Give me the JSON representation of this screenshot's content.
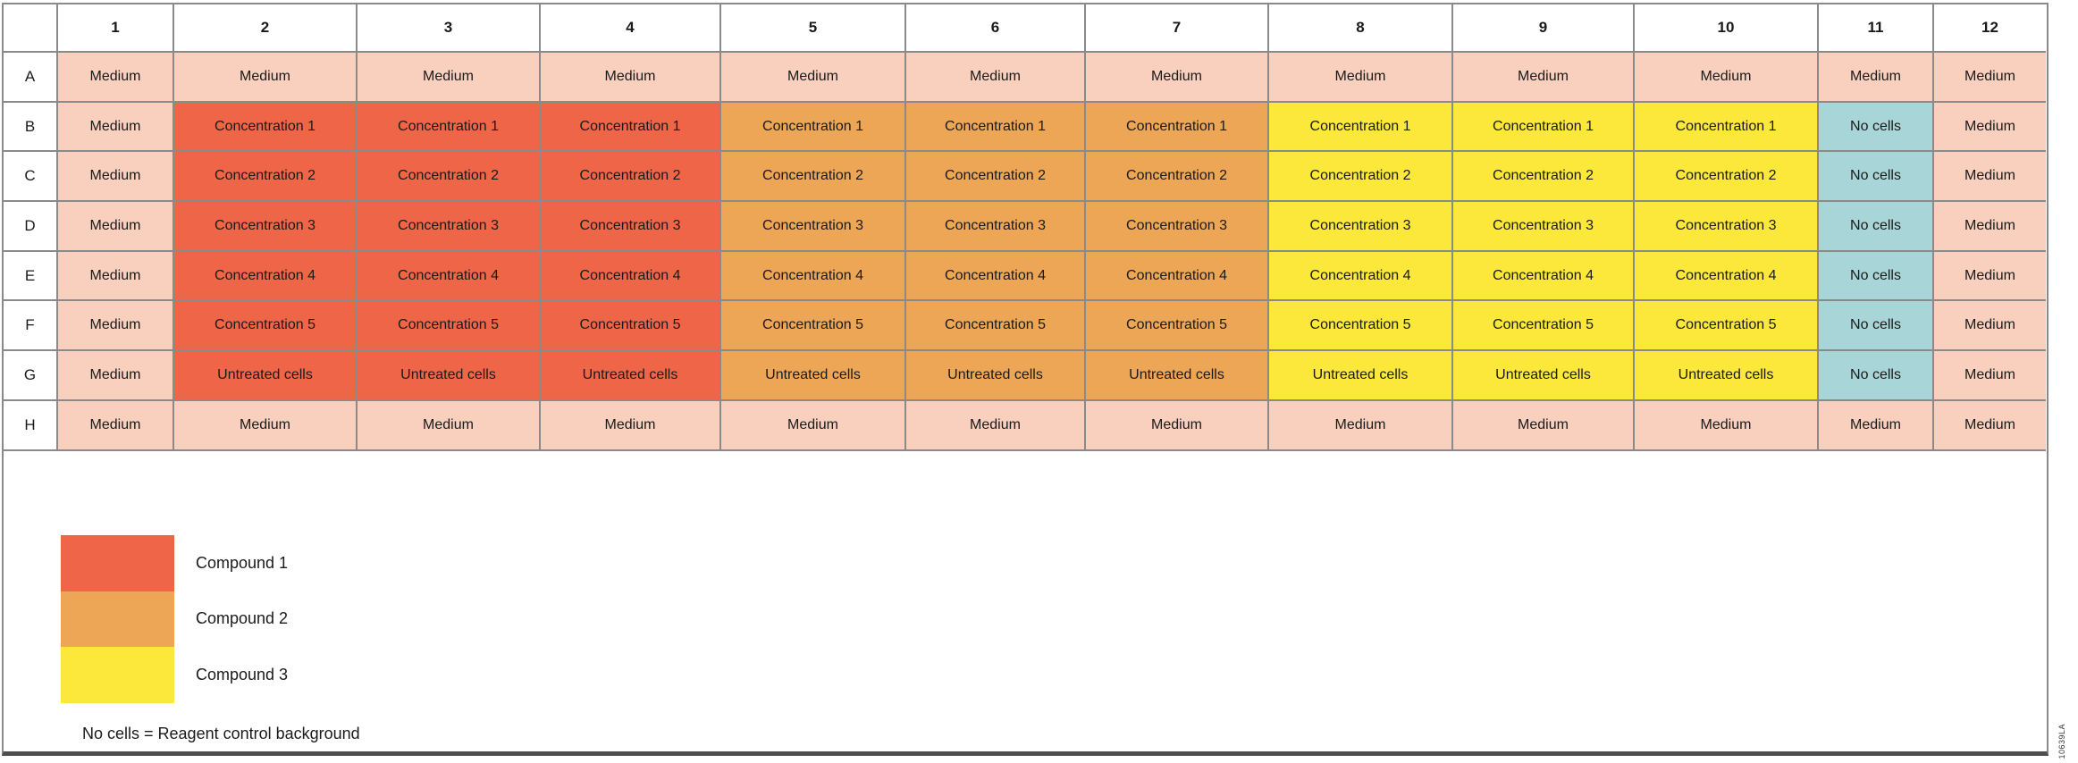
{
  "palette": {
    "medium": "#F9D0BE",
    "compound1": "#EF6548",
    "compound2": "#EDA655",
    "compound3": "#FBE83B",
    "no_cells": "#A8D5D7",
    "grid_line": "#8A8A8A",
    "bottom_edge": "#4F4F4F",
    "text": "#1A1A1A"
  },
  "plate": {
    "column_headers": [
      "1",
      "2",
      "3",
      "4",
      "5",
      "6",
      "7",
      "8",
      "9",
      "10",
      "11",
      "12"
    ],
    "rows": [
      {
        "label": "A",
        "cells": [
          {
            "text": "Medium",
            "color": "medium"
          },
          {
            "text": "Medium",
            "color": "medium"
          },
          {
            "text": "Medium",
            "color": "medium"
          },
          {
            "text": "Medium",
            "color": "medium"
          },
          {
            "text": "Medium",
            "color": "medium"
          },
          {
            "text": "Medium",
            "color": "medium"
          },
          {
            "text": "Medium",
            "color": "medium"
          },
          {
            "text": "Medium",
            "color": "medium"
          },
          {
            "text": "Medium",
            "color": "medium"
          },
          {
            "text": "Medium",
            "color": "medium"
          },
          {
            "text": "Medium",
            "color": "medium"
          },
          {
            "text": "Medium",
            "color": "medium"
          }
        ]
      },
      {
        "label": "B",
        "cells": [
          {
            "text": "Medium",
            "color": "medium"
          },
          {
            "text": "Concentration 1",
            "color": "compound1"
          },
          {
            "text": "Concentration 1",
            "color": "compound1"
          },
          {
            "text": "Concentration 1",
            "color": "compound1"
          },
          {
            "text": "Concentration 1",
            "color": "compound2"
          },
          {
            "text": "Concentration 1",
            "color": "compound2"
          },
          {
            "text": "Concentration 1",
            "color": "compound2"
          },
          {
            "text": "Concentration 1",
            "color": "compound3"
          },
          {
            "text": "Concentration 1",
            "color": "compound3"
          },
          {
            "text": "Concentration 1",
            "color": "compound3"
          },
          {
            "text": "No cells",
            "color": "no_cells"
          },
          {
            "text": "Medium",
            "color": "medium"
          }
        ]
      },
      {
        "label": "C",
        "cells": [
          {
            "text": "Medium",
            "color": "medium"
          },
          {
            "text": "Concentration 2",
            "color": "compound1"
          },
          {
            "text": "Concentration 2",
            "color": "compound1"
          },
          {
            "text": "Concentration 2",
            "color": "compound1"
          },
          {
            "text": "Concentration 2",
            "color": "compound2"
          },
          {
            "text": "Concentration 2",
            "color": "compound2"
          },
          {
            "text": "Concentration 2",
            "color": "compound2"
          },
          {
            "text": "Concentration 2",
            "color": "compound3"
          },
          {
            "text": "Concentration 2",
            "color": "compound3"
          },
          {
            "text": "Concentration 2",
            "color": "compound3"
          },
          {
            "text": "No cells",
            "color": "no_cells"
          },
          {
            "text": "Medium",
            "color": "medium"
          }
        ]
      },
      {
        "label": "D",
        "cells": [
          {
            "text": "Medium",
            "color": "medium"
          },
          {
            "text": "Concentration 3",
            "color": "compound1"
          },
          {
            "text": "Concentration 3",
            "color": "compound1"
          },
          {
            "text": "Concentration 3",
            "color": "compound1"
          },
          {
            "text": "Concentration 3",
            "color": "compound2"
          },
          {
            "text": "Concentration 3",
            "color": "compound2"
          },
          {
            "text": "Concentration 3",
            "color": "compound2"
          },
          {
            "text": "Concentration 3",
            "color": "compound3"
          },
          {
            "text": "Concentration 3",
            "color": "compound3"
          },
          {
            "text": "Concentration 3",
            "color": "compound3"
          },
          {
            "text": "No cells",
            "color": "no_cells"
          },
          {
            "text": "Medium",
            "color": "medium"
          }
        ]
      },
      {
        "label": "E",
        "cells": [
          {
            "text": "Medium",
            "color": "medium"
          },
          {
            "text": "Concentration 4",
            "color": "compound1"
          },
          {
            "text": "Concentration 4",
            "color": "compound1"
          },
          {
            "text": "Concentration 4",
            "color": "compound1"
          },
          {
            "text": "Concentration 4",
            "color": "compound2"
          },
          {
            "text": "Concentration 4",
            "color": "compound2"
          },
          {
            "text": "Concentration 4",
            "color": "compound2"
          },
          {
            "text": "Concentration 4",
            "color": "compound3"
          },
          {
            "text": "Concentration 4",
            "color": "compound3"
          },
          {
            "text": "Concentration 4",
            "color": "compound3"
          },
          {
            "text": "No cells",
            "color": "no_cells"
          },
          {
            "text": "Medium",
            "color": "medium"
          }
        ]
      },
      {
        "label": "F",
        "cells": [
          {
            "text": "Medium",
            "color": "medium"
          },
          {
            "text": "Concentration 5",
            "color": "compound1"
          },
          {
            "text": "Concentration 5",
            "color": "compound1"
          },
          {
            "text": "Concentration 5",
            "color": "compound1"
          },
          {
            "text": "Concentration 5",
            "color": "compound2"
          },
          {
            "text": "Concentration 5",
            "color": "compound2"
          },
          {
            "text": "Concentration 5",
            "color": "compound2"
          },
          {
            "text": "Concentration 5",
            "color": "compound3"
          },
          {
            "text": "Concentration 5",
            "color": "compound3"
          },
          {
            "text": "Concentration 5",
            "color": "compound3"
          },
          {
            "text": "No cells",
            "color": "no_cells"
          },
          {
            "text": "Medium",
            "color": "medium"
          }
        ]
      },
      {
        "label": "G",
        "cells": [
          {
            "text": "Medium",
            "color": "medium"
          },
          {
            "text": "Untreated cells",
            "color": "compound1"
          },
          {
            "text": "Untreated cells",
            "color": "compound1"
          },
          {
            "text": "Untreated cells",
            "color": "compound1"
          },
          {
            "text": "Untreated cells",
            "color": "compound2"
          },
          {
            "text": "Untreated cells",
            "color": "compound2"
          },
          {
            "text": "Untreated cells",
            "color": "compound2"
          },
          {
            "text": "Untreated cells",
            "color": "compound3"
          },
          {
            "text": "Untreated cells",
            "color": "compound3"
          },
          {
            "text": "Untreated cells",
            "color": "compound3"
          },
          {
            "text": "No cells",
            "color": "no_cells"
          },
          {
            "text": "Medium",
            "color": "medium"
          }
        ]
      },
      {
        "label": "H",
        "cells": [
          {
            "text": "Medium",
            "color": "medium"
          },
          {
            "text": "Medium",
            "color": "medium"
          },
          {
            "text": "Medium",
            "color": "medium"
          },
          {
            "text": "Medium",
            "color": "medium"
          },
          {
            "text": "Medium",
            "color": "medium"
          },
          {
            "text": "Medium",
            "color": "medium"
          },
          {
            "text": "Medium",
            "color": "medium"
          },
          {
            "text": "Medium",
            "color": "medium"
          },
          {
            "text": "Medium",
            "color": "medium"
          },
          {
            "text": "Medium",
            "color": "medium"
          },
          {
            "text": "Medium",
            "color": "medium"
          },
          {
            "text": "Medium",
            "color": "medium"
          }
        ]
      }
    ]
  },
  "legend": {
    "items": [
      {
        "label": "Compound 1",
        "color": "compound1"
      },
      {
        "label": "Compound 2",
        "color": "compound2"
      },
      {
        "label": "Compound 3",
        "color": "compound3"
      }
    ],
    "note": "No cells = Reagent control background"
  },
  "doc_id": "10639LA"
}
